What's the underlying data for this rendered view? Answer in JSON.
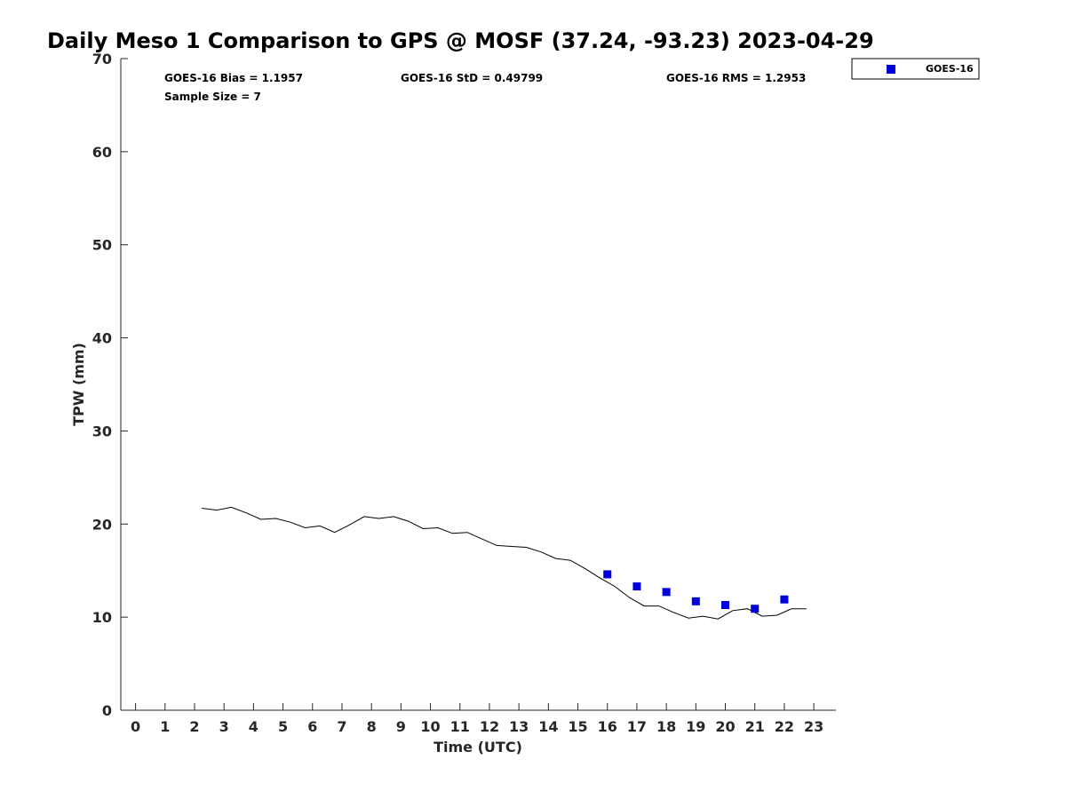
{
  "chart_data": {
    "type": "line",
    "title": "Daily Meso 1 Comparison to GPS @ MOSF (37.24, -93.23) 2023-04-29",
    "xlabel": "Time (UTC)",
    "ylabel": "TPW (mm)",
    "xlim": [
      -0.5,
      23.75
    ],
    "ylim": [
      0,
      70
    ],
    "xticks": [
      0,
      1,
      2,
      3,
      4,
      5,
      6,
      7,
      8,
      9,
      10,
      11,
      12,
      13,
      14,
      15,
      16,
      17,
      18,
      19,
      20,
      21,
      22,
      23
    ],
    "yticks": [
      0,
      10,
      20,
      30,
      40,
      50,
      60,
      70
    ],
    "stats": {
      "bias": "GOES-16 Bias = 1.1957",
      "std": "GOES-16 StD = 0.49799",
      "rms": "GOES-16 RMS = 1.2953",
      "sample_size": "Sample Size = 7"
    },
    "legend": {
      "label": "GOES-16",
      "color": "#0000dd",
      "placement": "top-right-outside"
    },
    "gps_series": {
      "name": "GPS",
      "color": "#000000",
      "x": [
        2.25,
        2.75,
        3.25,
        3.75,
        4.25,
        4.75,
        5.25,
        5.75,
        6.25,
        6.75,
        7.25,
        7.75,
        8.25,
        8.75,
        9.25,
        9.75,
        10.25,
        10.75,
        11.25,
        11.75,
        12.25,
        12.75,
        13.25,
        13.75,
        14.25,
        14.75,
        15.25,
        15.75,
        16.25,
        16.75,
        17.25,
        17.75,
        18.25,
        18.75,
        19.25,
        19.75,
        20.25,
        20.75,
        21.25,
        21.75,
        22.25,
        22.75
      ],
      "y": [
        21.7,
        21.5,
        21.8,
        21.2,
        20.5,
        20.6,
        20.2,
        19.6,
        19.8,
        19.1,
        19.9,
        20.8,
        20.6,
        20.8,
        20.3,
        19.5,
        19.6,
        19.0,
        19.1,
        18.4,
        17.7,
        17.6,
        17.5,
        17.0,
        16.3,
        16.1,
        15.2,
        14.2,
        13.3,
        12.1,
        11.2,
        11.2,
        10.5,
        9.9,
        10.1,
        9.8,
        10.7,
        10.9,
        10.1,
        10.2,
        10.9,
        10.9
      ]
    },
    "goes_series": {
      "name": "GOES-16",
      "color": "#0000dd",
      "x": [
        16,
        17,
        18,
        19,
        20,
        21,
        22
      ],
      "y": [
        14.6,
        13.3,
        12.7,
        11.7,
        11.3,
        10.9,
        11.9
      ]
    }
  }
}
